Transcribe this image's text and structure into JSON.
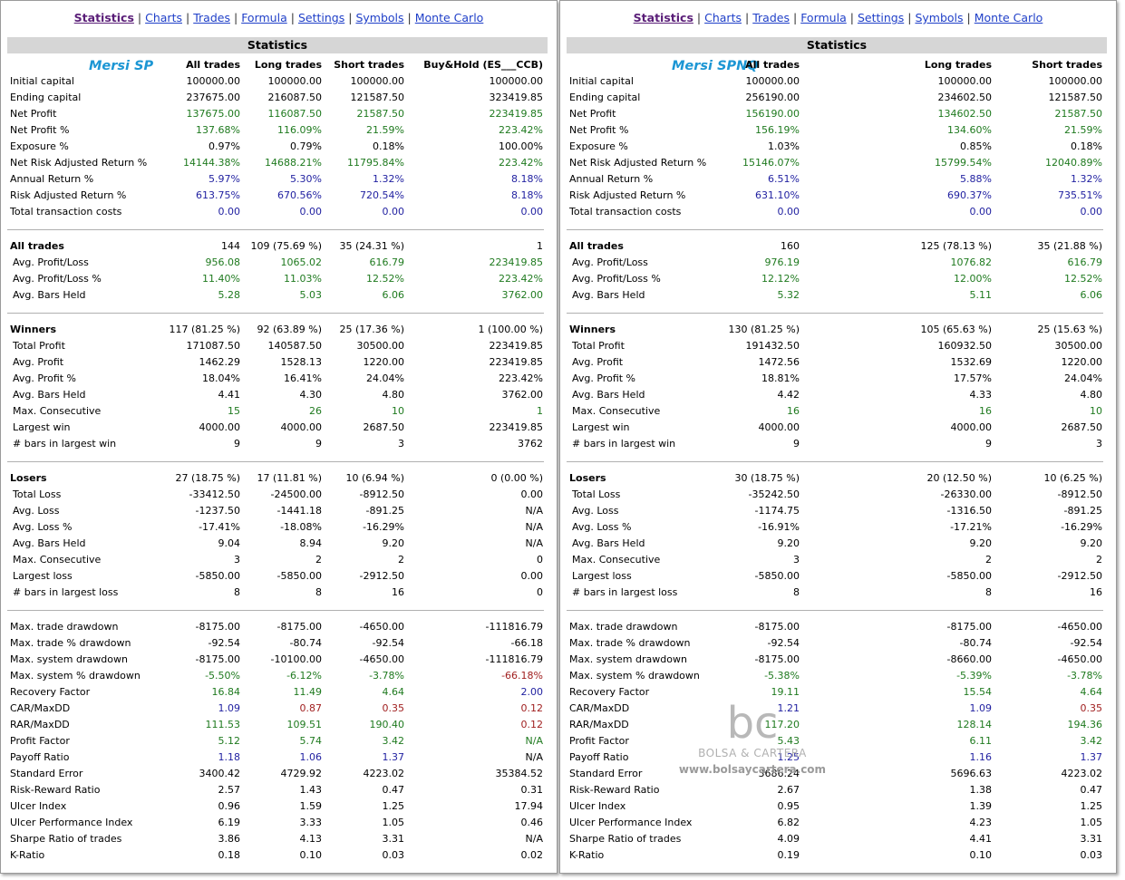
{
  "nav": [
    "Statistics",
    "Charts",
    "Trades",
    "Formula",
    "Settings",
    "Symbols",
    "Monte Carlo"
  ],
  "nav_active": 0,
  "section_title": "Statistics",
  "watermark": {
    "logo": "bc",
    "name": "BOLSA & CARTERA",
    "url": "www.bolsaycartera.com"
  },
  "colors": {
    "green": "#1f7a1f",
    "blue": "#1f1fa0",
    "red": "#a01f1f",
    "brand": "#1c96d4",
    "nav_link": "#1f3fc8",
    "nav_active": "#5a1e78"
  },
  "panels": [
    {
      "system": "Mersi SP",
      "columns": [
        "All trades",
        "Long trades",
        "Short trades",
        "Buy&Hold (ES___CCB)"
      ],
      "rows": [
        {
          "label": "Initial capital",
          "vals": [
            "100000.00",
            "100000.00",
            "100000.00",
            "100000.00"
          ],
          "color": "k"
        },
        {
          "label": "Ending capital",
          "vals": [
            "237675.00",
            "216087.50",
            "121587.50",
            "323419.85"
          ],
          "color": "k"
        },
        {
          "label": "Net Profit",
          "vals": [
            "137675.00",
            "116087.50",
            "21587.50",
            "223419.85"
          ],
          "color": "g"
        },
        {
          "label": "Net Profit %",
          "vals": [
            "137.68%",
            "116.09%",
            "21.59%",
            "223.42%"
          ],
          "color": "g"
        },
        {
          "label": "Exposure %",
          "vals": [
            "0.97%",
            "0.79%",
            "0.18%",
            "100.00%"
          ],
          "color": "k"
        },
        {
          "label": "Net Risk Adjusted Return %",
          "vals": [
            "14144.38%",
            "14688.21%",
            "11795.84%",
            "223.42%"
          ],
          "color": "g"
        },
        {
          "label": "Annual Return %",
          "vals": [
            "5.97%",
            "5.30%",
            "1.32%",
            "8.18%"
          ],
          "color": "b"
        },
        {
          "label": "Risk Adjusted Return %",
          "vals": [
            "613.75%",
            "670.56%",
            "720.54%",
            "8.18%"
          ],
          "color": "b"
        },
        {
          "label": "Total transaction costs",
          "vals": [
            "0.00",
            "0.00",
            "0.00",
            "0.00"
          ],
          "color": "b"
        },
        {
          "divider": true
        },
        {
          "label": "All trades",
          "vals": [
            "144",
            "109 (75.69 %)",
            "35 (24.31 %)",
            "1"
          ],
          "color": "k",
          "bold": true
        },
        {
          "label": "Avg. Profit/Loss",
          "vals": [
            "956.08",
            "1065.02",
            "616.79",
            "223419.85"
          ],
          "color": "g",
          "indent": true
        },
        {
          "label": "Avg. Profit/Loss %",
          "vals": [
            "11.40%",
            "11.03%",
            "12.52%",
            "223.42%"
          ],
          "color": "g",
          "indent": true
        },
        {
          "label": "Avg. Bars Held",
          "vals": [
            "5.28",
            "5.03",
            "6.06",
            "3762.00"
          ],
          "color": "g",
          "indent": true
        },
        {
          "divider": true
        },
        {
          "label": "Winners",
          "vals": [
            "117 (81.25 %)",
            "92 (63.89 %)",
            "25 (17.36 %)",
            "1 (100.00 %)"
          ],
          "color": "k",
          "bold": true
        },
        {
          "label": "Total Profit",
          "vals": [
            "171087.50",
            "140587.50",
            "30500.00",
            "223419.85"
          ],
          "color": "k",
          "indent": true
        },
        {
          "label": "Avg. Profit",
          "vals": [
            "1462.29",
            "1528.13",
            "1220.00",
            "223419.85"
          ],
          "color": "k",
          "indent": true
        },
        {
          "label": "Avg. Profit %",
          "vals": [
            "18.04%",
            "16.41%",
            "24.04%",
            "223.42%"
          ],
          "color": "k",
          "indent": true
        },
        {
          "label": "Avg. Bars Held",
          "vals": [
            "4.41",
            "4.30",
            "4.80",
            "3762.00"
          ],
          "color": "k",
          "indent": true
        },
        {
          "label": "Max. Consecutive",
          "vals": [
            "15",
            "26",
            "10",
            "1"
          ],
          "color": "g",
          "indent": true
        },
        {
          "label": "Largest win",
          "vals": [
            "4000.00",
            "4000.00",
            "2687.50",
            "223419.85"
          ],
          "color": "k",
          "indent": true
        },
        {
          "label": "# bars in largest win",
          "vals": [
            "9",
            "9",
            "3",
            "3762"
          ],
          "color": "k",
          "indent": true
        },
        {
          "divider": true
        },
        {
          "label": "Losers",
          "vals": [
            "27 (18.75 %)",
            "17 (11.81 %)",
            "10 (6.94 %)",
            "0 (0.00 %)"
          ],
          "color": "k",
          "bold": true
        },
        {
          "label": "Total Loss",
          "vals": [
            "-33412.50",
            "-24500.00",
            "-8912.50",
            "0.00"
          ],
          "color": "k",
          "indent": true
        },
        {
          "label": "Avg. Loss",
          "vals": [
            "-1237.50",
            "-1441.18",
            "-891.25",
            "N/A"
          ],
          "color": "k",
          "indent": true
        },
        {
          "label": "Avg. Loss %",
          "vals": [
            "-17.41%",
            "-18.08%",
            "-16.29%",
            "N/A"
          ],
          "color": "k",
          "indent": true
        },
        {
          "label": "Avg. Bars Held",
          "vals": [
            "9.04",
            "8.94",
            "9.20",
            "N/A"
          ],
          "color": "k",
          "indent": true
        },
        {
          "label": "Max. Consecutive",
          "vals": [
            "3",
            "2",
            "2",
            "0"
          ],
          "color": "k",
          "indent": true
        },
        {
          "label": "Largest loss",
          "vals": [
            "-5850.00",
            "-5850.00",
            "-2912.50",
            "0.00"
          ],
          "color": "k",
          "indent": true
        },
        {
          "label": "# bars in largest loss",
          "vals": [
            "8",
            "8",
            "16",
            "0"
          ],
          "color": "k",
          "indent": true
        },
        {
          "divider": true
        },
        {
          "label": "Max. trade drawdown",
          "vals": [
            "-8175.00",
            "-8175.00",
            "-4650.00",
            "-111816.79"
          ],
          "color": "k"
        },
        {
          "label": "Max. trade % drawdown",
          "vals": [
            "-92.54",
            "-80.74",
            "-92.54",
            "-66.18"
          ],
          "color": "k"
        },
        {
          "label": "Max. system drawdown",
          "vals": [
            "-8175.00",
            "-10100.00",
            "-4650.00",
            "-111816.79"
          ],
          "color": "k"
        },
        {
          "label": "Max. system % drawdown",
          "vals": [
            "-5.50%",
            "-6.12%",
            "-3.78%",
            "-66.18%"
          ],
          "color": "g",
          "colors": [
            "g",
            "g",
            "g",
            "r"
          ]
        },
        {
          "label": "Recovery Factor",
          "vals": [
            "16.84",
            "11.49",
            "4.64",
            "2.00"
          ],
          "color": "g",
          "colors": [
            "g",
            "g",
            "g",
            "b"
          ]
        },
        {
          "label": "CAR/MaxDD",
          "vals": [
            "1.09",
            "0.87",
            "0.35",
            "0.12"
          ],
          "color": "b",
          "colors": [
            "b",
            "r",
            "r",
            "r"
          ]
        },
        {
          "label": "RAR/MaxDD",
          "vals": [
            "111.53",
            "109.51",
            "190.40",
            "0.12"
          ],
          "color": "g",
          "colors": [
            "g",
            "g",
            "g",
            "r"
          ]
        },
        {
          "label": "Profit Factor",
          "vals": [
            "5.12",
            "5.74",
            "3.42",
            "N/A"
          ],
          "color": "g"
        },
        {
          "label": "Payoff Ratio",
          "vals": [
            "1.18",
            "1.06",
            "1.37",
            "N/A"
          ],
          "color": "b",
          "colors": [
            "b",
            "b",
            "b",
            "k"
          ]
        },
        {
          "label": "Standard Error",
          "vals": [
            "3400.42",
            "4729.92",
            "4223.02",
            "35384.52"
          ],
          "color": "k"
        },
        {
          "label": "Risk-Reward Ratio",
          "vals": [
            "2.57",
            "1.43",
            "0.47",
            "0.31"
          ],
          "color": "k"
        },
        {
          "label": "Ulcer Index",
          "vals": [
            "0.96",
            "1.59",
            "1.25",
            "17.94"
          ],
          "color": "k"
        },
        {
          "label": "Ulcer Performance Index",
          "vals": [
            "6.19",
            "3.33",
            "1.05",
            "0.46"
          ],
          "color": "k"
        },
        {
          "label": "Sharpe Ratio of trades",
          "vals": [
            "3.86",
            "4.13",
            "3.31",
            "N/A"
          ],
          "color": "k"
        },
        {
          "label": "K-Ratio",
          "vals": [
            "0.18",
            "0.10",
            "0.03",
            "0.02"
          ],
          "color": "k"
        }
      ]
    },
    {
      "system": "Mersi SPNQ",
      "columns": [
        "All trades",
        "Long trades",
        "Short trades"
      ],
      "rows": [
        {
          "label": "Initial capital",
          "vals": [
            "100000.00",
            "100000.00",
            "100000.00"
          ],
          "color": "k"
        },
        {
          "label": "Ending capital",
          "vals": [
            "256190.00",
            "234602.50",
            "121587.50"
          ],
          "color": "k"
        },
        {
          "label": "Net Profit",
          "vals": [
            "156190.00",
            "134602.50",
            "21587.50"
          ],
          "color": "g"
        },
        {
          "label": "Net Profit %",
          "vals": [
            "156.19%",
            "134.60%",
            "21.59%"
          ],
          "color": "g"
        },
        {
          "label": "Exposure %",
          "vals": [
            "1.03%",
            "0.85%",
            "0.18%"
          ],
          "color": "k"
        },
        {
          "label": "Net Risk Adjusted Return %",
          "vals": [
            "15146.07%",
            "15799.54%",
            "12040.89%"
          ],
          "color": "g"
        },
        {
          "label": "Annual Return %",
          "vals": [
            "6.51%",
            "5.88%",
            "1.32%"
          ],
          "color": "b"
        },
        {
          "label": "Risk Adjusted Return %",
          "vals": [
            "631.10%",
            "690.37%",
            "735.51%"
          ],
          "color": "b"
        },
        {
          "label": "Total transaction costs",
          "vals": [
            "0.00",
            "0.00",
            "0.00"
          ],
          "color": "b"
        },
        {
          "divider": true
        },
        {
          "label": "All trades",
          "vals": [
            "160",
            "125 (78.13 %)",
            "35 (21.88 %)"
          ],
          "color": "k",
          "bold": true
        },
        {
          "label": "Avg. Profit/Loss",
          "vals": [
            "976.19",
            "1076.82",
            "616.79"
          ],
          "color": "g",
          "indent": true
        },
        {
          "label": "Avg. Profit/Loss %",
          "vals": [
            "12.12%",
            "12.00%",
            "12.52%"
          ],
          "color": "g",
          "indent": true
        },
        {
          "label": "Avg. Bars Held",
          "vals": [
            "5.32",
            "5.11",
            "6.06"
          ],
          "color": "g",
          "indent": true
        },
        {
          "divider": true
        },
        {
          "label": "Winners",
          "vals": [
            "130 (81.25 %)",
            "105 (65.63 %)",
            "25 (15.63 %)"
          ],
          "color": "k",
          "bold": true
        },
        {
          "label": "Total Profit",
          "vals": [
            "191432.50",
            "160932.50",
            "30500.00"
          ],
          "color": "k",
          "indent": true
        },
        {
          "label": "Avg. Profit",
          "vals": [
            "1472.56",
            "1532.69",
            "1220.00"
          ],
          "color": "k",
          "indent": true
        },
        {
          "label": "Avg. Profit %",
          "vals": [
            "18.81%",
            "17.57%",
            "24.04%"
          ],
          "color": "k",
          "indent": true
        },
        {
          "label": "Avg. Bars Held",
          "vals": [
            "4.42",
            "4.33",
            "4.80"
          ],
          "color": "k",
          "indent": true
        },
        {
          "label": "Max. Consecutive",
          "vals": [
            "16",
            "16",
            "10"
          ],
          "color": "g",
          "indent": true
        },
        {
          "label": "Largest win",
          "vals": [
            "4000.00",
            "4000.00",
            "2687.50"
          ],
          "color": "k",
          "indent": true
        },
        {
          "label": "# bars in largest win",
          "vals": [
            "9",
            "9",
            "3"
          ],
          "color": "k",
          "indent": true
        },
        {
          "divider": true
        },
        {
          "label": "Losers",
          "vals": [
            "30 (18.75 %)",
            "20 (12.50 %)",
            "10 (6.25 %)"
          ],
          "color": "k",
          "bold": true
        },
        {
          "label": "Total Loss",
          "vals": [
            "-35242.50",
            "-26330.00",
            "-8912.50"
          ],
          "color": "k",
          "indent": true
        },
        {
          "label": "Avg. Loss",
          "vals": [
            "-1174.75",
            "-1316.50",
            "-891.25"
          ],
          "color": "k",
          "indent": true
        },
        {
          "label": "Avg. Loss %",
          "vals": [
            "-16.91%",
            "-17.21%",
            "-16.29%"
          ],
          "color": "k",
          "indent": true
        },
        {
          "label": "Avg. Bars Held",
          "vals": [
            "9.20",
            "9.20",
            "9.20"
          ],
          "color": "k",
          "indent": true
        },
        {
          "label": "Max. Consecutive",
          "vals": [
            "3",
            "2",
            "2"
          ],
          "color": "k",
          "indent": true
        },
        {
          "label": "Largest loss",
          "vals": [
            "-5850.00",
            "-5850.00",
            "-2912.50"
          ],
          "color": "k",
          "indent": true
        },
        {
          "label": "# bars in largest loss",
          "vals": [
            "8",
            "8",
            "16"
          ],
          "color": "k",
          "indent": true
        },
        {
          "divider": true
        },
        {
          "label": "Max. trade drawdown",
          "vals": [
            "-8175.00",
            "-8175.00",
            "-4650.00"
          ],
          "color": "k"
        },
        {
          "label": "Max. trade % drawdown",
          "vals": [
            "-92.54",
            "-80.74",
            "-92.54"
          ],
          "color": "k"
        },
        {
          "label": "Max. system drawdown",
          "vals": [
            "-8175.00",
            "-8660.00",
            "-4650.00"
          ],
          "color": "k"
        },
        {
          "label": "Max. system % drawdown",
          "vals": [
            "-5.38%",
            "-5.39%",
            "-3.78%"
          ],
          "color": "g"
        },
        {
          "label": "Recovery Factor",
          "vals": [
            "19.11",
            "15.54",
            "4.64"
          ],
          "color": "g"
        },
        {
          "label": "CAR/MaxDD",
          "vals": [
            "1.21",
            "1.09",
            "0.35"
          ],
          "color": "b",
          "colors": [
            "b",
            "b",
            "r"
          ]
        },
        {
          "label": "RAR/MaxDD",
          "vals": [
            "117.20",
            "128.14",
            "194.36"
          ],
          "color": "g"
        },
        {
          "label": "Profit Factor",
          "vals": [
            "5.43",
            "6.11",
            "3.42"
          ],
          "color": "g"
        },
        {
          "label": "Payoff Ratio",
          "vals": [
            "1.25",
            "1.16",
            "1.37"
          ],
          "color": "b"
        },
        {
          "label": "Standard Error",
          "vals": [
            "3686.24",
            "5696.63",
            "4223.02"
          ],
          "color": "k"
        },
        {
          "label": "Risk-Reward Ratio",
          "vals": [
            "2.67",
            "1.38",
            "0.47"
          ],
          "color": "k"
        },
        {
          "label": "Ulcer Index",
          "vals": [
            "0.95",
            "1.39",
            "1.25"
          ],
          "color": "k"
        },
        {
          "label": "Ulcer Performance Index",
          "vals": [
            "6.82",
            "4.23",
            "1.05"
          ],
          "color": "k"
        },
        {
          "label": "Sharpe Ratio of trades",
          "vals": [
            "4.09",
            "4.41",
            "3.31"
          ],
          "color": "k"
        },
        {
          "label": "K-Ratio",
          "vals": [
            "0.19",
            "0.10",
            "0.03"
          ],
          "color": "k"
        }
      ]
    }
  ]
}
